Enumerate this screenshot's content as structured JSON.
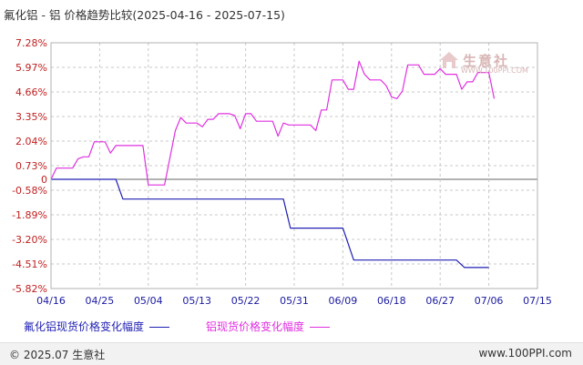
{
  "title": "氟化铝 - 铝 价格趋势比较(2025-04-16 - 2025-07-15)",
  "logo": {
    "text": "生意社",
    "url": "WWW.100PPI.COM"
  },
  "colors": {
    "series1": "#1f1fb4",
    "series2": "#e030e0",
    "grid": "#c8c8c8"
  },
  "chart_data": {
    "type": "line",
    "title": "氟化铝 - 铝 价格趋势比较(2025-04-16 - 2025-07-15)",
    "ylim": [
      -5.82,
      7.28
    ],
    "y_ticks": [
      7.28,
      5.97,
      4.66,
      3.35,
      2.04,
      0.73,
      0,
      -0.58,
      -1.89,
      -3.2,
      -4.51,
      -5.82
    ],
    "y_tick_labels": [
      "7.28%",
      "5.97%",
      "4.66%",
      "3.35%",
      "2.04%",
      "0.73%",
      "0",
      "-0.58%",
      "-1.89%",
      "-3.20%",
      "-4.51%",
      "-5.82%"
    ],
    "x_range": [
      "2025-04-16",
      "2025-07-15"
    ],
    "x_ticks": [
      "04/16",
      "04/25",
      "05/04",
      "05/13",
      "05/22",
      "05/31",
      "06/09",
      "06/18",
      "06/27",
      "07/06",
      "07/15"
    ],
    "series": [
      {
        "name": "氟化铝现货价格变化幅度",
        "color": "#1f1fb4",
        "points": [
          [
            0,
            0
          ],
          [
            12,
            0
          ],
          [
            13.3,
            -1.05
          ],
          [
            43,
            -1.05
          ],
          [
            44.3,
            -2.6
          ],
          [
            54,
            -2.6
          ],
          [
            56,
            -4.3
          ],
          [
            75,
            -4.3
          ],
          [
            76.5,
            -4.7
          ],
          [
            81,
            -4.7
          ]
        ]
      },
      {
        "name": "铝现货价格变化幅度",
        "color": "#e030e0",
        "points": [
          [
            0,
            0
          ],
          [
            1,
            0.6
          ],
          [
            4,
            0.6
          ],
          [
            5,
            1.1
          ],
          [
            6,
            1.2
          ],
          [
            7,
            1.2
          ],
          [
            8,
            2.0
          ],
          [
            10,
            2.0
          ],
          [
            11,
            1.4
          ],
          [
            12,
            1.8
          ],
          [
            17,
            1.8
          ],
          [
            18,
            -0.3
          ],
          [
            21,
            -0.3
          ],
          [
            23,
            2.6
          ],
          [
            24,
            3.3
          ],
          [
            25,
            3.0
          ],
          [
            27,
            3.0
          ],
          [
            28,
            2.8
          ],
          [
            29,
            3.2
          ],
          [
            30,
            3.2
          ],
          [
            31,
            3.5
          ],
          [
            33,
            3.5
          ],
          [
            34,
            3.4
          ],
          [
            35,
            2.7
          ],
          [
            36,
            3.5
          ],
          [
            37,
            3.5
          ],
          [
            38,
            3.1
          ],
          [
            41,
            3.1
          ],
          [
            42,
            2.3
          ],
          [
            43,
            3.0
          ],
          [
            44,
            2.9
          ],
          [
            45,
            2.9
          ],
          [
            48,
            2.9
          ],
          [
            49,
            2.6
          ],
          [
            50,
            3.7
          ],
          [
            51,
            3.7
          ],
          [
            52,
            5.3
          ],
          [
            54,
            5.3
          ],
          [
            55,
            4.8
          ],
          [
            56,
            4.8
          ],
          [
            57,
            6.3
          ],
          [
            58,
            5.6
          ],
          [
            59,
            5.3
          ],
          [
            61,
            5.3
          ],
          [
            62,
            5.0
          ],
          [
            63,
            4.4
          ],
          [
            64,
            4.3
          ],
          [
            65,
            4.7
          ],
          [
            66,
            6.1
          ],
          [
            68,
            6.1
          ],
          [
            69,
            5.6
          ],
          [
            71,
            5.6
          ],
          [
            72,
            5.9
          ],
          [
            73,
            5.6
          ],
          [
            75,
            5.6
          ],
          [
            76,
            4.8
          ],
          [
            77,
            5.2
          ],
          [
            78,
            5.2
          ],
          [
            79,
            5.7
          ],
          [
            81,
            5.7
          ],
          [
            82,
            4.3
          ]
        ]
      }
    ],
    "legend_position": "bottom",
    "grid": true
  },
  "footer": {
    "copyright": "© 2025.07 生意社",
    "site": "www.100PPI.com"
  }
}
